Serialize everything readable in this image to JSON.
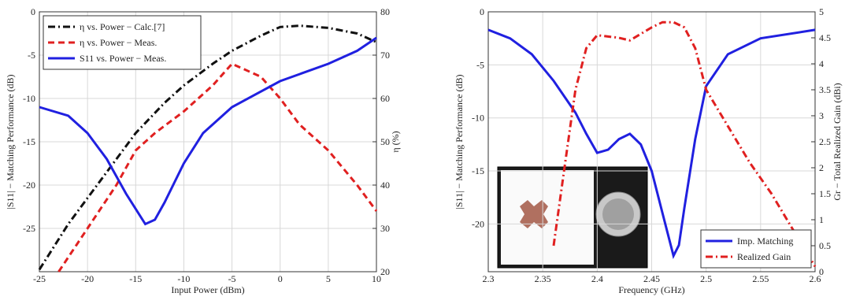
{
  "chart_data": [
    {
      "type": "line",
      "xlabel": "Input Power (dBm)",
      "ylabel": "|S11| − Matching Performance (dB)",
      "y2label": "η (%)",
      "xlim": [
        -25,
        10
      ],
      "xticks": [
        -25,
        -20,
        -15,
        -10,
        -5,
        0,
        5,
        10
      ],
      "ylim": [
        -30,
        0
      ],
      "yticks": [
        -25,
        -20,
        -15,
        -10,
        -5,
        0
      ],
      "y2lim": [
        20,
        80
      ],
      "y2ticks": [
        20,
        30,
        40,
        50,
        60,
        70,
        80
      ],
      "grid": true,
      "legend": "upper left",
      "series": [
        {
          "name": "η vs. Power − Calc.[7]",
          "color": "#111111",
          "style": "dashdot",
          "axis": "y2",
          "x": [
            -25,
            -22,
            -20,
            -17,
            -15,
            -12,
            -10,
            -7,
            -5,
            -2,
            0,
            2,
            5,
            8,
            10
          ],
          "values": [
            20.5,
            31,
            37,
            46,
            52,
            59,
            63,
            68,
            71,
            74.5,
            76.5,
            76.8,
            76.3,
            75,
            73
          ]
        },
        {
          "name": "η vs. Power − Meas.",
          "color": "#e02020",
          "style": "dashed",
          "axis": "y2",
          "x": [
            -23,
            -20,
            -17,
            -15,
            -13,
            -10,
            -7,
            -5,
            -2,
            0,
            2,
            5,
            8,
            10
          ],
          "values": [
            20,
            30,
            40,
            48,
            52,
            57,
            63,
            68,
            65,
            60,
            54,
            48,
            40,
            34
          ]
        },
        {
          "name": "S11 vs. Power − Meas.",
          "color": "#2020e0",
          "style": "solid",
          "axis": "y",
          "x": [
            -25,
            -22,
            -20,
            -18,
            -16,
            -14,
            -13,
            -12,
            -10,
            -8,
            -5,
            0,
            5,
            8,
            10
          ],
          "values": [
            -11,
            -12,
            -14,
            -17,
            -21,
            -24.5,
            -24,
            -22,
            -17.5,
            -14,
            -11,
            -8,
            -6,
            -4.5,
            -3
          ]
        }
      ]
    },
    {
      "type": "line",
      "xlabel": "Frequency (GHz)",
      "ylabel": "|S11| − Matching Performance (dB)",
      "y2label": "Gr − Total Realized Gain (dBi)",
      "xlim": [
        2.3,
        2.6
      ],
      "xticks": [
        2.3,
        2.35,
        2.4,
        2.45,
        2.5,
        2.55,
        2.6
      ],
      "ylim": [
        -24.5,
        0
      ],
      "yticks": [
        -20,
        -15,
        -10,
        -5,
        0
      ],
      "y2lim": [
        0,
        5
      ],
      "y2ticks": [
        0,
        0.5,
        1,
        1.5,
        2,
        2.5,
        3,
        3.5,
        4,
        4.5,
        5
      ],
      "grid": true,
      "legend": "lower right",
      "series": [
        {
          "name": "Imp. Matching",
          "color": "#2020e0",
          "style": "solid",
          "axis": "y",
          "x": [
            2.3,
            2.32,
            2.34,
            2.36,
            2.38,
            2.39,
            2.4,
            2.41,
            2.42,
            2.43,
            2.44,
            2.45,
            2.46,
            2.47,
            2.475,
            2.48,
            2.49,
            2.5,
            2.52,
            2.55,
            2.6
          ],
          "values": [
            -1.7,
            -2.5,
            -4,
            -6.5,
            -9.5,
            -11.5,
            -13.3,
            -13,
            -12,
            -11.5,
            -12.5,
            -15,
            -19,
            -23,
            -22,
            -18.5,
            -12,
            -7,
            -4,
            -2.5,
            -1.7
          ]
        },
        {
          "name": "Realized Gain",
          "color": "#e02020",
          "style": "dashdot",
          "axis": "y2",
          "x": [
            2.36,
            2.37,
            2.38,
            2.39,
            2.4,
            2.42,
            2.43,
            2.45,
            2.46,
            2.47,
            2.48,
            2.49,
            2.5,
            2.52,
            2.54,
            2.56,
            2.58,
            2.6
          ],
          "values": [
            0.5,
            2,
            3.5,
            4.3,
            4.55,
            4.5,
            4.45,
            4.7,
            4.8,
            4.8,
            4.7,
            4.3,
            3.5,
            2.8,
            2.1,
            1.5,
            0.8,
            0.1
          ]
        }
      ]
    }
  ]
}
